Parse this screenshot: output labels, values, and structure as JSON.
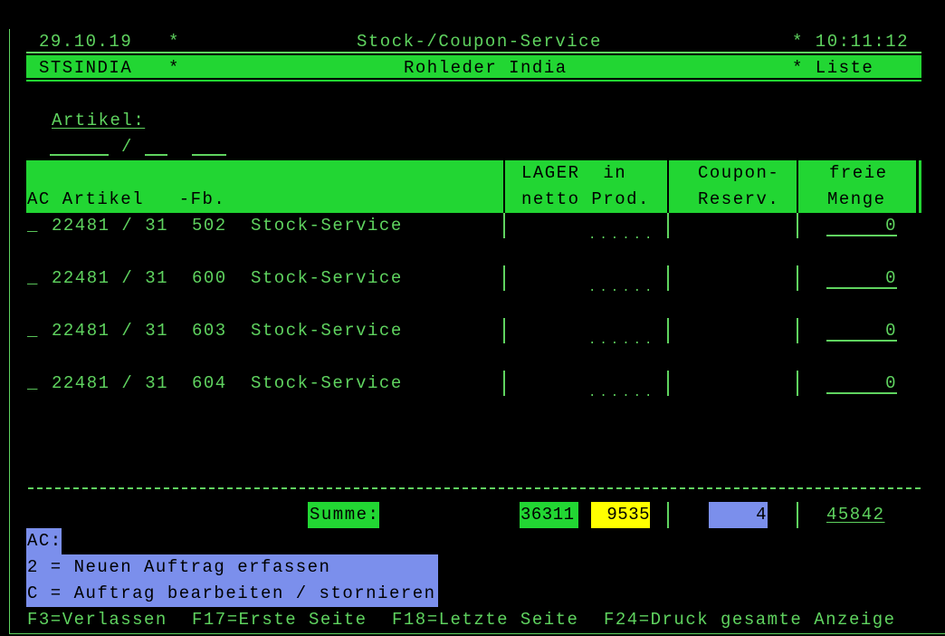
{
  "colors": {
    "green_bar": "#22d633",
    "text": "#5fd35f",
    "yellow": "#ffff00",
    "blue": "#7b8fec"
  },
  "header": {
    "date": "29.10.19",
    "star1": "*",
    "title": "Stock-/Coupon-Service",
    "star_time": "* 10:11:12",
    "user": "STSINDIA",
    "star2": "*",
    "company": "Rohleder India",
    "mode": "* Liste"
  },
  "filter": {
    "label": "Artikel:",
    "slash": "/"
  },
  "columns": {
    "ac_artikel": "AC Artikel   -Fb.",
    "lager1": "LAGER  in",
    "lager2": "netto Prod.",
    "coupon1": "Coupon-",
    "coupon2": "Reserv.",
    "freie1": "freie",
    "freie2": "Menge"
  },
  "rows": [
    {
      "sel": "_",
      "artikel": "22481 / 31",
      "fb": "502",
      "text": "Stock-Service",
      "prod": "......",
      "freie": "0"
    },
    {
      "sel": "_",
      "artikel": "22481 / 31",
      "fb": "600",
      "text": "Stock-Service",
      "prod": "......",
      "freie": "0"
    },
    {
      "sel": "_",
      "artikel": "22481 / 31",
      "fb": "603",
      "text": "Stock-Service",
      "prod": "......",
      "freie": "0"
    },
    {
      "sel": "_",
      "artikel": "22481 / 31",
      "fb": "604",
      "text": "Stock-Service",
      "prod": "......",
      "freie": "0"
    }
  ],
  "summary": {
    "label": "Summe:",
    "lager_netto": "36311",
    "in_prod": "9535",
    "coupon": "4",
    "freie": "45842"
  },
  "legend": {
    "title": "AC:",
    "opt2": "2 = Neuen Auftrag erfassen",
    "optC": "C = Auftrag bearbeiten / stornieren"
  },
  "fkeys": [
    "F3=Verlassen",
    "F17=Erste Seite",
    "F18=Letzte Seite",
    "F24=Druck gesamte Anzeige"
  ]
}
